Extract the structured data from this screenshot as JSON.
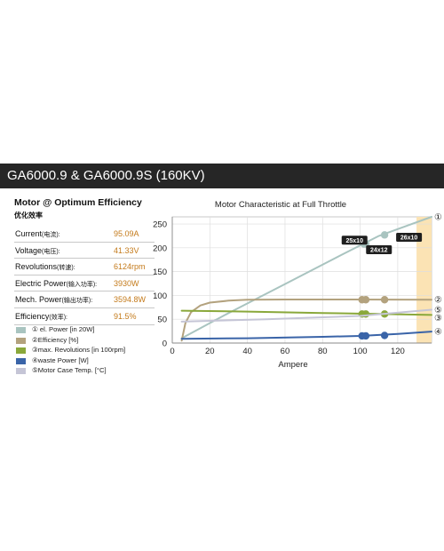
{
  "header": {
    "title": "GA6000.9 & GA6000.9S (160KV)"
  },
  "specs": {
    "title": "Motor @ Optimum Efficiency",
    "subtitle": "优化效率",
    "rows": [
      {
        "label": "Current",
        "label_cn": "(电流):",
        "value": "95.09A"
      },
      {
        "label": "Voltage",
        "label_cn": "(电压):",
        "value": "41.33V"
      },
      {
        "label": "Revolutions",
        "label_cn": "(转速):",
        "value": "6124rpm"
      },
      {
        "label": "Electric Power",
        "label_cn": "(输入功率):",
        "value": "3930W"
      },
      {
        "label": "Mech. Power",
        "label_cn": "(输出功率):",
        "value": "3594.8W"
      },
      {
        "label": "Efficiency",
        "label_cn": "(效率):",
        "value": "91.5%"
      }
    ]
  },
  "legend": [
    {
      "text": "① el. Power [in 20W]",
      "color": "#a9c4c0"
    },
    {
      "text": "②Efficiency [%]",
      "color": "#b3a27e"
    },
    {
      "text": "③max. Revolutions [in 100rpm]",
      "color": "#8aa83b"
    },
    {
      "text": "④waste Power [W]",
      "color": "#3a64a8"
    },
    {
      "text": "⑤Motor Case Temp. [°C]",
      "color": "#c5c5d6"
    }
  ],
  "chart_data": {
    "type": "line",
    "title": "Motor Characteristic at Full Throttle",
    "xlabel": "Ampere",
    "ylabel": "",
    "xlim": [
      0,
      138
    ],
    "ylim": [
      0,
      265
    ],
    "xticks": [
      0,
      20,
      40,
      60,
      80,
      100,
      120
    ],
    "yticks": [
      0,
      50,
      100,
      150,
      200,
      250
    ],
    "grid": true,
    "highlight_band": {
      "from": 130,
      "to": 138,
      "color": "#fbe3b4"
    },
    "series": [
      {
        "name": "① el. Power [in 20W]",
        "end_label": "①",
        "color": "#a9c4c0",
        "points": [
          [
            5,
            10
          ],
          [
            30,
            63
          ],
          [
            60,
            124
          ],
          [
            90,
            185
          ],
          [
            110,
            225
          ],
          [
            138,
            265
          ]
        ],
        "markers": [
          [
            102,
            208
          ],
          [
            103,
            208
          ],
          [
            113,
            227
          ]
        ]
      },
      {
        "name": "②Efficiency [%]",
        "end_label": "②",
        "color": "#b3a27e",
        "points": [
          [
            5,
            5
          ],
          [
            7,
            42
          ],
          [
            10,
            65
          ],
          [
            15,
            79
          ],
          [
            20,
            85
          ],
          [
            30,
            89
          ],
          [
            40,
            91
          ],
          [
            60,
            91.5
          ],
          [
            95,
            91.5
          ],
          [
            138,
            91
          ]
        ],
        "markers": [
          [
            101,
            91
          ],
          [
            103,
            91
          ],
          [
            113,
            91
          ]
        ]
      },
      {
        "name": "③max. Revolutions [in 100rpm]",
        "end_label": "③",
        "color": "#8aa83b",
        "points": [
          [
            5,
            68
          ],
          [
            40,
            66
          ],
          [
            80,
            63
          ],
          [
            110,
            61
          ],
          [
            138,
            59
          ]
        ],
        "markers": [
          [
            101,
            61
          ],
          [
            103,
            61
          ],
          [
            113,
            61
          ]
        ]
      },
      {
        "name": "④waste Power [W]",
        "end_label": "④",
        "color": "#3a64a8",
        "points": [
          [
            5,
            9
          ],
          [
            40,
            10
          ],
          [
            80,
            13
          ],
          [
            100,
            15
          ],
          [
            120,
            19
          ],
          [
            138,
            24
          ]
        ],
        "markers": [
          [
            101,
            15
          ],
          [
            103,
            15
          ],
          [
            113,
            16
          ]
        ]
      },
      {
        "name": "⑤Motor Case Temp. [°C]",
        "end_label": "⑤",
        "color": "#c5c5d6",
        "points": [
          [
            5,
            45
          ],
          [
            50,
            50
          ],
          [
            100,
            57
          ],
          [
            138,
            70
          ]
        ],
        "markers": []
      }
    ],
    "annotations": [
      {
        "text": "25x10",
        "x": 97,
        "y": 216
      },
      {
        "text": "24x12",
        "x": 110,
        "y": 196
      },
      {
        "text": "26x10",
        "x": 126,
        "y": 222
      }
    ]
  }
}
